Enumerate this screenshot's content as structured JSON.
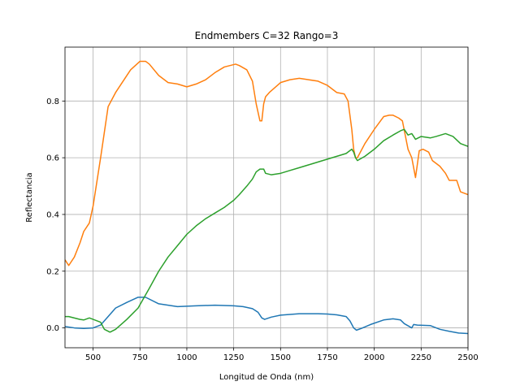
{
  "chart_data": {
    "type": "line",
    "title": "Endmembers C=32 Rango=3",
    "xlabel": "Longitud de Onda (nm)",
    "ylabel": "Reflectancia",
    "xlim": [
      350,
      2500
    ],
    "ylim": [
      -0.07,
      0.99
    ],
    "grid": true,
    "xticks": [
      500,
      750,
      1000,
      1250,
      1500,
      1750,
      2000,
      2250,
      2500
    ],
    "yticks": [
      0.0,
      0.2,
      0.4,
      0.6,
      0.8
    ],
    "colors": [
      "#1f77b4",
      "#ff7f0e",
      "#2ca02c"
    ],
    "series": [
      {
        "color": "#1f77b4",
        "x": [
          350,
          400,
          450,
          500,
          540,
          580,
          620,
          680,
          740,
          780,
          850,
          950,
          1050,
          1150,
          1250,
          1300,
          1350,
          1380,
          1400,
          1415,
          1450,
          1500,
          1600,
          1700,
          1750,
          1800,
          1850,
          1870,
          1890,
          1905,
          1930,
          1980,
          2050,
          2100,
          2140,
          2160,
          2200,
          2210,
          2230,
          2300,
          2350,
          2400,
          2450,
          2500
        ],
        "y": [
          0.005,
          0.0,
          -0.002,
          0.0,
          0.01,
          0.04,
          0.07,
          0.09,
          0.108,
          0.108,
          0.085,
          0.075,
          0.078,
          0.08,
          0.078,
          0.075,
          0.068,
          0.055,
          0.035,
          0.03,
          0.038,
          0.045,
          0.05,
          0.05,
          0.049,
          0.046,
          0.04,
          0.025,
          0.0,
          -0.008,
          -0.002,
          0.012,
          0.028,
          0.032,
          0.028,
          0.015,
          0.0,
          0.012,
          0.01,
          0.008,
          -0.005,
          -0.012,
          -0.018,
          -0.02
        ]
      },
      {
        "color": "#ff7f0e",
        "x": [
          350,
          370,
          400,
          430,
          450,
          480,
          500,
          540,
          580,
          620,
          700,
          750,
          780,
          800,
          850,
          900,
          950,
          1000,
          1050,
          1100,
          1150,
          1200,
          1230,
          1260,
          1280,
          1320,
          1350,
          1370,
          1390,
          1400,
          1410,
          1420,
          1440,
          1500,
          1550,
          1600,
          1650,
          1700,
          1750,
          1800,
          1840,
          1860,
          1880,
          1890,
          1900,
          1910,
          1950,
          2000,
          2050,
          2080,
          2100,
          2130,
          2150,
          2180,
          2200,
          2220,
          2240,
          2260,
          2290,
          2310,
          2350,
          2380,
          2400,
          2440,
          2460,
          2500
        ],
        "y": [
          0.24,
          0.22,
          0.25,
          0.3,
          0.34,
          0.37,
          0.43,
          0.6,
          0.78,
          0.83,
          0.91,
          0.94,
          0.94,
          0.93,
          0.89,
          0.865,
          0.86,
          0.85,
          0.86,
          0.875,
          0.9,
          0.92,
          0.925,
          0.93,
          0.925,
          0.91,
          0.87,
          0.79,
          0.73,
          0.73,
          0.79,
          0.815,
          0.83,
          0.865,
          0.875,
          0.88,
          0.875,
          0.87,
          0.855,
          0.83,
          0.825,
          0.8,
          0.7,
          0.63,
          0.6,
          0.6,
          0.65,
          0.7,
          0.745,
          0.75,
          0.75,
          0.74,
          0.73,
          0.63,
          0.6,
          0.53,
          0.625,
          0.63,
          0.62,
          0.59,
          0.57,
          0.545,
          0.52,
          0.52,
          0.48,
          0.47
        ]
      },
      {
        "color": "#2ca02c",
        "x": [
          350,
          370,
          400,
          430,
          450,
          480,
          500,
          540,
          560,
          590,
          620,
          680,
          740,
          800,
          850,
          900,
          950,
          1000,
          1050,
          1100,
          1150,
          1200,
          1250,
          1280,
          1320,
          1350,
          1370,
          1390,
          1410,
          1420,
          1450,
          1500,
          1550,
          1600,
          1650,
          1700,
          1750,
          1800,
          1850,
          1870,
          1880,
          1890,
          1900,
          1910,
          1950,
          2000,
          2050,
          2100,
          2140,
          2160,
          2180,
          2200,
          2220,
          2250,
          2300,
          2330,
          2380,
          2420,
          2460,
          2500
        ],
        "y": [
          0.04,
          0.04,
          0.035,
          0.03,
          0.028,
          0.035,
          0.03,
          0.02,
          -0.005,
          -0.015,
          -0.005,
          0.03,
          0.07,
          0.14,
          0.2,
          0.25,
          0.29,
          0.33,
          0.36,
          0.385,
          0.405,
          0.425,
          0.45,
          0.47,
          0.5,
          0.525,
          0.55,
          0.56,
          0.56,
          0.545,
          0.54,
          0.545,
          0.555,
          0.565,
          0.575,
          0.585,
          0.595,
          0.605,
          0.615,
          0.625,
          0.63,
          0.62,
          0.6,
          0.59,
          0.605,
          0.63,
          0.66,
          0.68,
          0.695,
          0.7,
          0.68,
          0.685,
          0.665,
          0.675,
          0.67,
          0.675,
          0.685,
          0.675,
          0.65,
          0.64
        ]
      }
    ]
  }
}
